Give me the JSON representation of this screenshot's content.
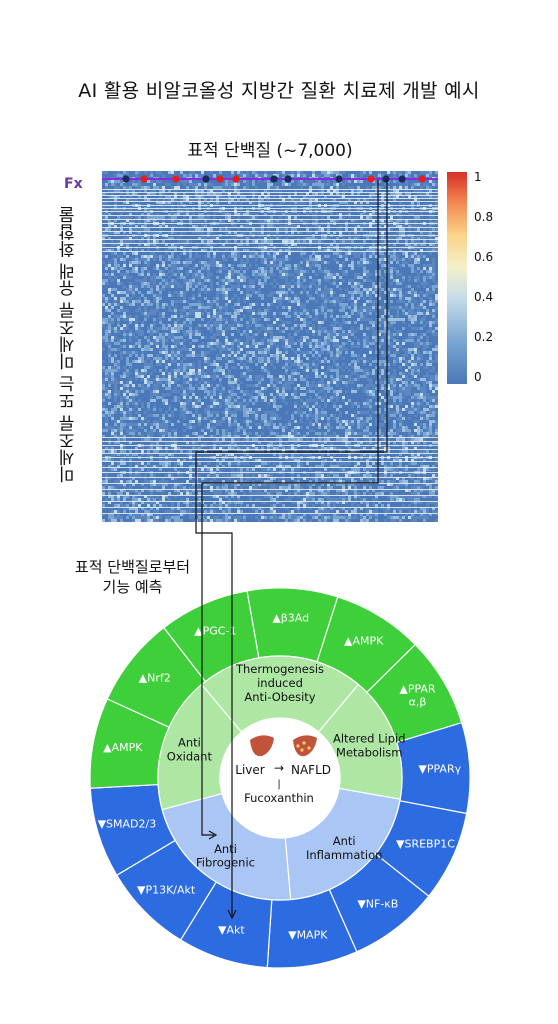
{
  "title": "AI 활용 비알코올성 지방간 질환 치료제 개발 예시",
  "heatmap": {
    "title": "표적 단백질 (~7,000)",
    "row_label": "Fx",
    "y_axis_label": "미세조류 또는 미세조류 유래 화합물",
    "colorbar_ticks": [
      "1",
      "0.8",
      "0.6",
      "0.4",
      "0.2",
      "0"
    ],
    "colors": {
      "low": "#4a78b8",
      "mid": "#f3e9a6",
      "high": "#d73027",
      "fx_line": "#8a2be2",
      "dot_dark": "#1a2b5e",
      "dot_red": "#e0201b"
    }
  },
  "prediction_label": "표적 단백질로부터\n기능 예측",
  "wheel": {
    "center": {
      "liver": "Liver",
      "nafld": "NAFLD",
      "compound": "Fucoxanthin",
      "arrow": "→",
      "bar": "|"
    },
    "functions": [
      {
        "label": "Thermogenesis\ninduced\nAnti-Obesity",
        "group": "up"
      },
      {
        "label": "Altered Lipid\nMetabolism",
        "group": "up"
      },
      {
        "label": "Anti\nInflammation",
        "group": "down"
      },
      {
        "label": "Anti\nFibrogenic",
        "group": "down"
      },
      {
        "label": "Anti\nOxidant",
        "group": "up"
      }
    ],
    "targets": [
      {
        "label": "▲β3Ad",
        "group": "up"
      },
      {
        "label": "▲AMPK",
        "group": "up"
      },
      {
        "label": "▲PPAR\nα,β",
        "group": "up"
      },
      {
        "label": "▼PPARγ",
        "group": "down"
      },
      {
        "label": "▼SREBP1C",
        "group": "down"
      },
      {
        "label": "▼NF-κB",
        "group": "down"
      },
      {
        "label": "▼MAPK",
        "group": "down"
      },
      {
        "label": "▼Akt",
        "group": "down"
      },
      {
        "label": "▼P13K/Akt",
        "group": "down"
      },
      {
        "label": "▼SMAD2/3",
        "group": "down"
      },
      {
        "label": "▲AMPK",
        "group": "up"
      },
      {
        "label": "▲Nrf2",
        "group": "up"
      },
      {
        "label": "▲PGC-1",
        "group": "up"
      }
    ],
    "colors": {
      "up_outer": "#3fcf3a",
      "up_inner": "#aee6a4",
      "down_outer": "#2c6be0",
      "down_inner": "#a9c6f5",
      "center": "#ffffff",
      "liver": "#c0533a"
    }
  }
}
